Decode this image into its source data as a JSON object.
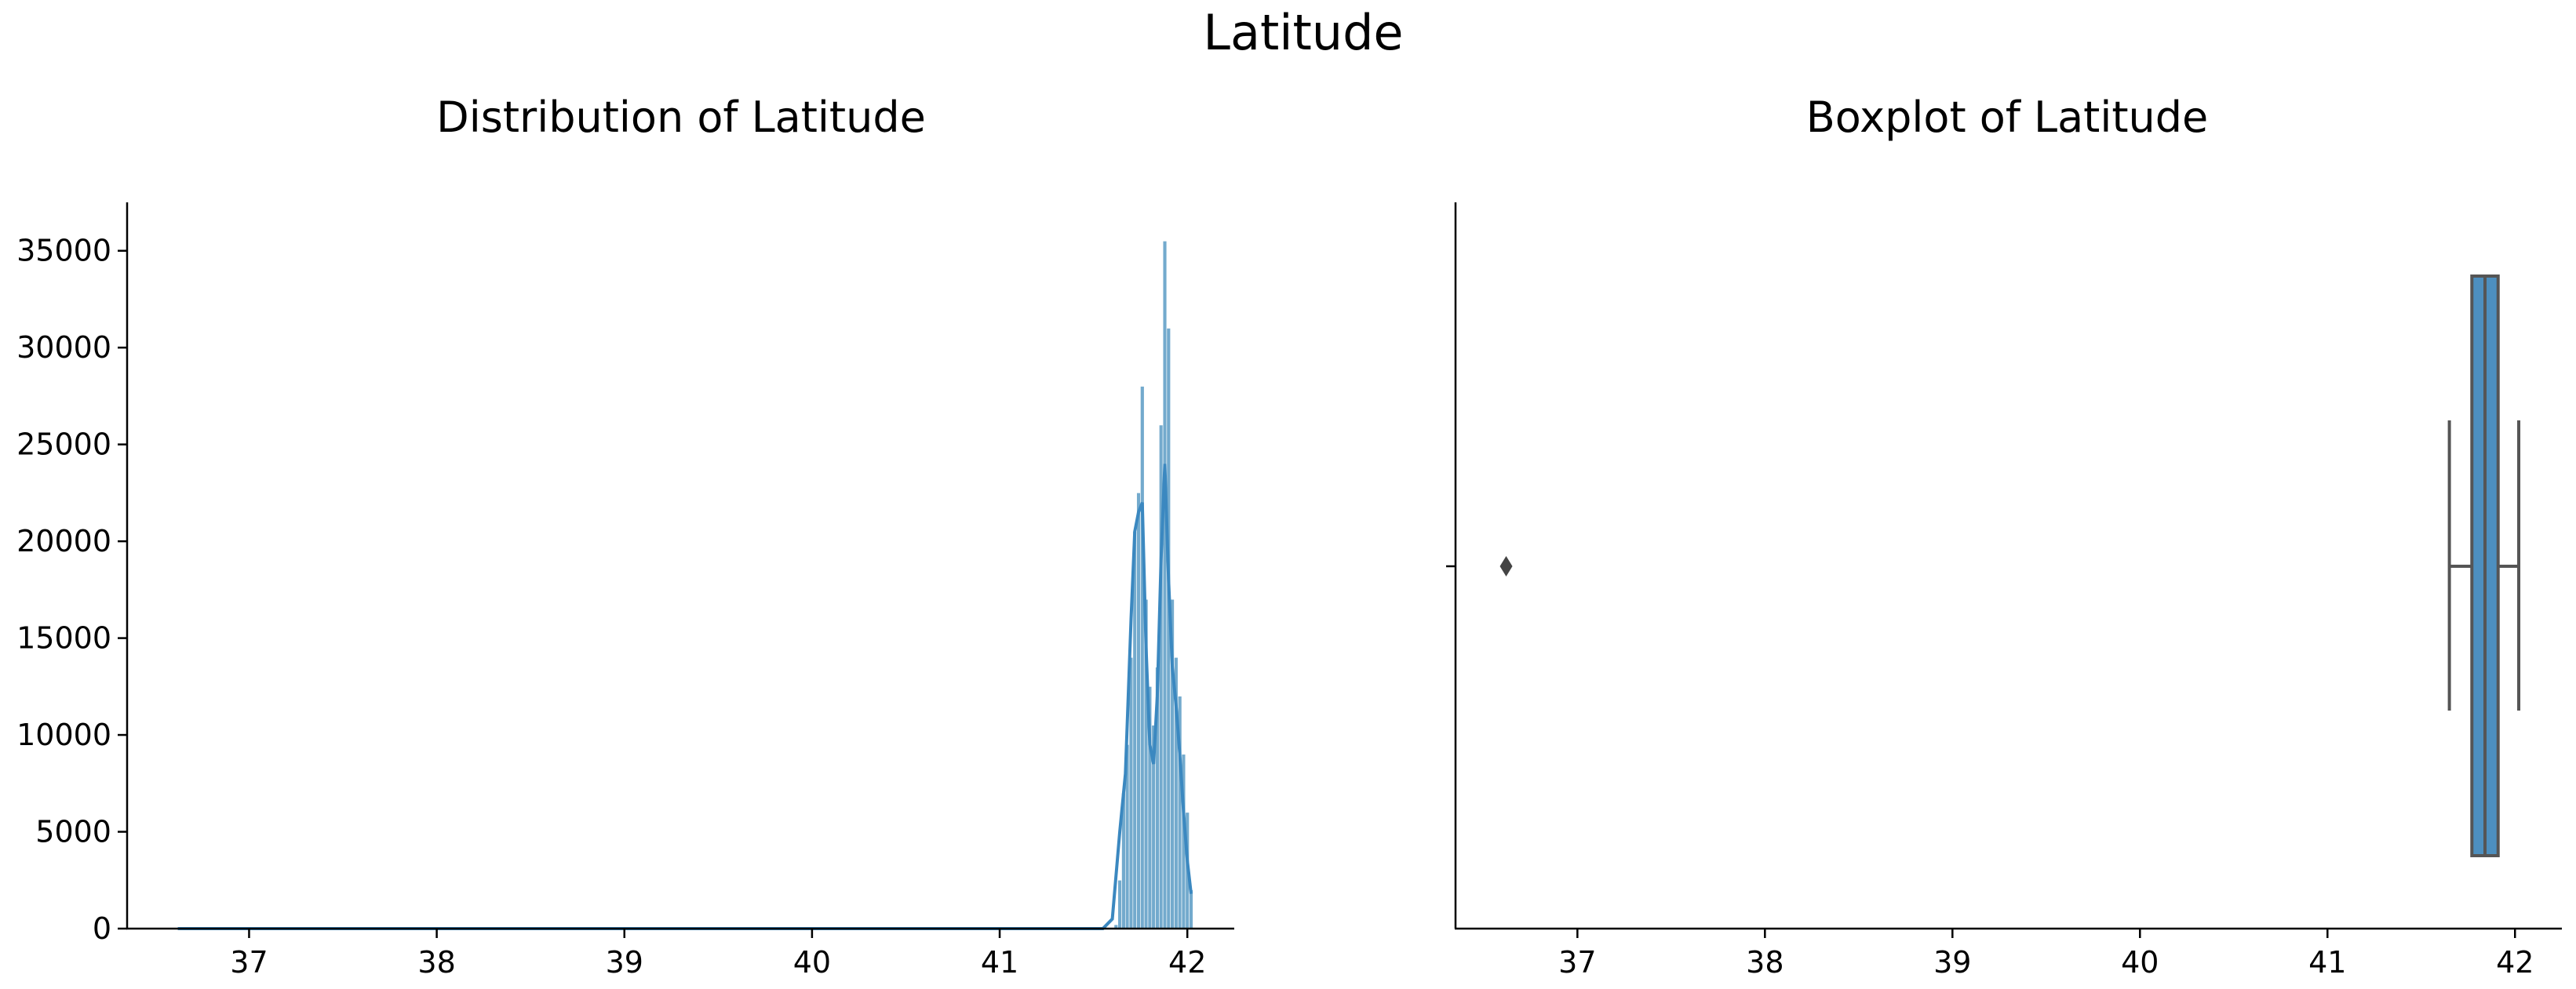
{
  "figure": {
    "suptitle": "Latitude"
  },
  "colors": {
    "hist_fill": "#5a9bc4",
    "kde_line": "#3b88c0",
    "box_fill": "#4d8fbf",
    "box_edge": "#555555",
    "outlier": "#444444"
  },
  "chart_data": [
    {
      "type": "histogram",
      "title": "Distribution of Latitude",
      "xlabel": "",
      "ylabel": "",
      "xlim": [
        36.35,
        42.25
      ],
      "ylim": [
        0,
        37500
      ],
      "xticks": [
        37,
        38,
        39,
        40,
        41,
        42
      ],
      "yticks": [
        0,
        5000,
        10000,
        15000,
        20000,
        25000,
        30000,
        35000
      ],
      "bins": [
        {
          "x": 41.62,
          "count": 200
        },
        {
          "x": 41.64,
          "count": 2500
        },
        {
          "x": 41.66,
          "count": 7000
        },
        {
          "x": 41.68,
          "count": 9500
        },
        {
          "x": 41.7,
          "count": 14000
        },
        {
          "x": 41.72,
          "count": 20500
        },
        {
          "x": 41.74,
          "count": 22500
        },
        {
          "x": 41.76,
          "count": 28000
        },
        {
          "x": 41.78,
          "count": 17000
        },
        {
          "x": 41.8,
          "count": 12500
        },
        {
          "x": 41.82,
          "count": 10500
        },
        {
          "x": 41.84,
          "count": 13500
        },
        {
          "x": 41.86,
          "count": 26000
        },
        {
          "x": 41.88,
          "count": 35500
        },
        {
          "x": 41.9,
          "count": 31000
        },
        {
          "x": 41.92,
          "count": 17000
        },
        {
          "x": 41.94,
          "count": 14000
        },
        {
          "x": 41.96,
          "count": 12000
        },
        {
          "x": 41.98,
          "count": 9000
        },
        {
          "x": 42.0,
          "count": 6000
        },
        {
          "x": 42.02,
          "count": 2000
        }
      ],
      "kde": {
        "x": [
          36.62,
          41.55,
          41.6,
          41.64,
          41.67,
          41.7,
          41.72,
          41.74,
          41.76,
          41.78,
          41.8,
          41.82,
          41.84,
          41.86,
          41.88,
          41.9,
          41.92,
          41.94,
          41.96,
          41.98,
          42.0,
          42.02
        ],
        "y": [
          0,
          0,
          500,
          5000,
          8000,
          16000,
          20500,
          21500,
          22000,
          14500,
          9500,
          8500,
          12000,
          19000,
          24000,
          18000,
          13500,
          11500,
          9000,
          6000,
          3500,
          1800
        ]
      }
    },
    {
      "type": "boxplot",
      "title": "Boxplot of Latitude",
      "xlabel": "",
      "ylabel": "",
      "xlim": [
        36.35,
        42.25
      ],
      "xticks": [
        37,
        38,
        39,
        40,
        41,
        42
      ],
      "whisker_low": 41.65,
      "q1": 41.77,
      "median": 41.84,
      "q3": 41.91,
      "whisker_high": 42.02,
      "outliers": [
        36.62
      ]
    }
  ]
}
